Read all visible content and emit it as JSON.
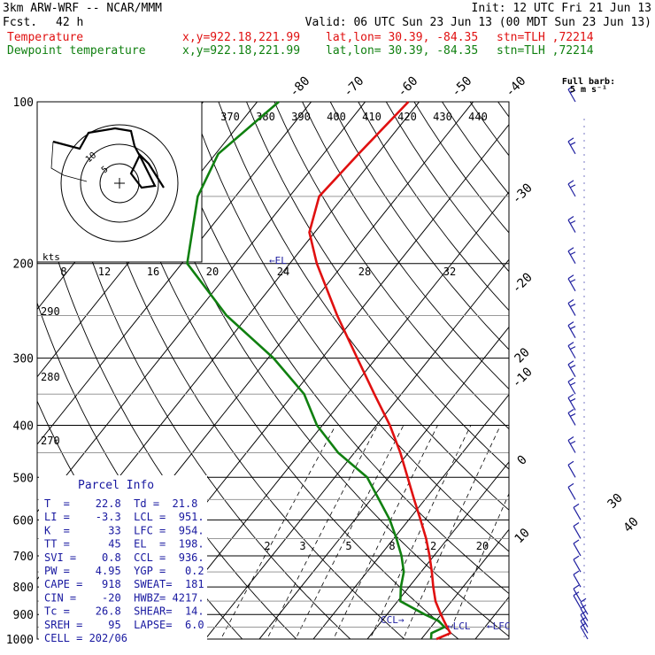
{
  "header": {
    "model": "3km ARW-WRF -- NCAR/MMM",
    "init": "Init: 12 UTC Fri 21 Jun 13",
    "fcst_label": "Fcst.",
    "fcst_value": "42 h",
    "valid": "Valid: 06 UTC Sun 23 Jun 13 (00 MDT Sun 23 Jun 13)",
    "temp_label": "Temperature",
    "dew_label": "Dewpoint temperature",
    "xy": "x,y=922.18,221.99",
    "latlon": "lat,lon= 30.39, -84.35",
    "stn": "stn=TLH ,72214",
    "full_barb": "Full barb:",
    "full_barb_value": "5 m s⁻¹"
  },
  "colors": {
    "temperature": "#e01010",
    "dewpoint": "#108010",
    "wind": "#2020a0",
    "parcel_box": "#1818a0"
  },
  "parcel_info": {
    "title": "Parcel Info",
    "rows": [
      "T  =    22.8  Td =  21.8",
      "LI =    -3.3  LCL =  951.",
      "K  =      33  LFC =  954.",
      "TT =      45  EL  =  198.",
      "SVI =    0.8  CCL =  936.",
      "PW =    4.95  YGP =   0.2",
      "CAPE =   918  SWEAT=  181",
      "CIN =    -20  HWBZ= 4217.",
      "Tc =    26.8  SHEAR=  14.",
      "SREH =    95  LAPSE=  6.0",
      "CELL = 202/06"
    ]
  },
  "chart_data": {
    "type": "line",
    "diagram": "skew-T log-p",
    "y_axis": {
      "name": "pressure",
      "ticks": [
        "100",
        "200",
        "300",
        "400",
        "500",
        "600",
        "700",
        "800",
        "900",
        "1000"
      ]
    },
    "isotherm_labels": [
      "-80",
      "-70",
      "-60",
      "-50",
      "-40",
      "-30",
      "-20",
      "-10",
      "0",
      "10",
      "20",
      "30",
      "40"
    ],
    "theta_labels": [
      "370",
      "380",
      "390",
      "400",
      "410",
      "420",
      "430",
      "440"
    ],
    "dry_adiabat_labels": [
      "290",
      "280",
      "270"
    ],
    "mixing_ratio_labels": [
      "2",
      "3",
      "5",
      "8",
      "12",
      "20"
    ],
    "hodograph": {
      "speed_unit": "kts",
      "speed_ticks": [
        "8",
        "12",
        "16",
        "20",
        "24",
        "28",
        "32"
      ],
      "ring_labels": [
        "5",
        "10"
      ]
    },
    "annotations": [
      "EL",
      "CCL",
      "LCL",
      "LFC"
    ],
    "series": [
      {
        "name": "Temperature",
        "color": "#e01010",
        "points": [
          [
            1000,
            22.8
          ],
          [
            975,
            24.5
          ],
          [
            950,
            23.0
          ],
          [
            925,
            21.5
          ],
          [
            900,
            20.0
          ],
          [
            850,
            17.0
          ],
          [
            800,
            14.5
          ],
          [
            750,
            12.0
          ],
          [
            700,
            9.2
          ],
          [
            650,
            6.0
          ],
          [
            600,
            2.2
          ],
          [
            550,
            -2.0
          ],
          [
            500,
            -6.5
          ],
          [
            450,
            -11.5
          ],
          [
            400,
            -17.5
          ],
          [
            350,
            -25.0
          ],
          [
            300,
            -33.5
          ],
          [
            250,
            -43.5
          ],
          [
            200,
            -55.0
          ],
          [
            175,
            -61.0
          ],
          [
            150,
            -64.5
          ],
          [
            125,
            -63.5
          ],
          [
            100,
            -62.0
          ]
        ]
      },
      {
        "name": "Dewpoint temperature",
        "color": "#108010",
        "points": [
          [
            1000,
            21.8
          ],
          [
            975,
            21.0
          ],
          [
            950,
            22.5
          ],
          [
            925,
            20.5
          ],
          [
            900,
            17.0
          ],
          [
            850,
            10.5
          ],
          [
            800,
            8.5
          ],
          [
            750,
            6.8
          ],
          [
            700,
            4.0
          ],
          [
            650,
            0.5
          ],
          [
            600,
            -3.5
          ],
          [
            550,
            -8.5
          ],
          [
            500,
            -14.0
          ],
          [
            450,
            -23.0
          ],
          [
            400,
            -31.0
          ],
          [
            350,
            -38.0
          ],
          [
            300,
            -49.0
          ],
          [
            250,
            -64.0
          ],
          [
            200,
            -79.0
          ],
          [
            150,
            -87.0
          ],
          [
            125,
            -89.5
          ],
          [
            100,
            -86.0
          ]
        ]
      }
    ],
    "wind_barb_pressures": [
      1000,
      975,
      950,
      925,
      900,
      875,
      850,
      800,
      750,
      700,
      650,
      600,
      550,
      500,
      450,
      400,
      375,
      350,
      325,
      300,
      275,
      250,
      225,
      200,
      175,
      150,
      125,
      100
    ]
  }
}
